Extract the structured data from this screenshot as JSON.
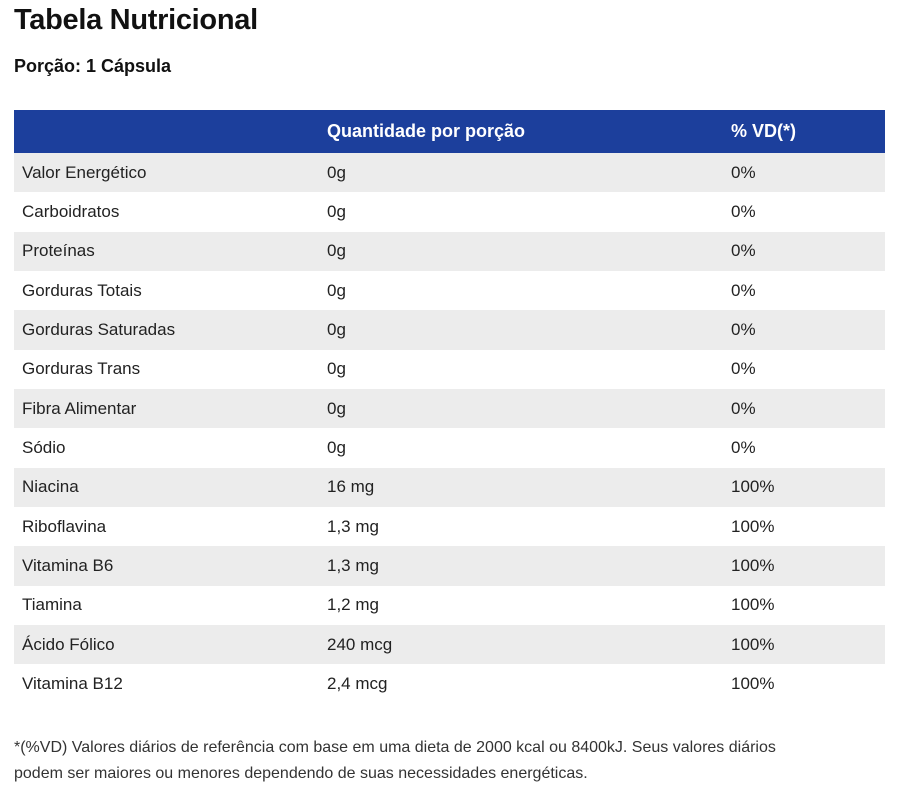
{
  "title": "Tabela Nutricional",
  "portion": "Porção: 1 Cápsula",
  "table": {
    "header": {
      "nutrient": "",
      "quantity": "Quantidade por porção",
      "vd": "% VD(*)"
    },
    "rows": [
      {
        "nutrient": "Valor Energético",
        "quantity": "0g",
        "vd": "0%"
      },
      {
        "nutrient": "Carboidratos",
        "quantity": "0g",
        "vd": "0%"
      },
      {
        "nutrient": "Proteínas",
        "quantity": "0g",
        "vd": "0%"
      },
      {
        "nutrient": "Gorduras Totais",
        "quantity": "0g",
        "vd": "0%"
      },
      {
        "nutrient": "Gorduras Saturadas",
        "quantity": "0g",
        "vd": "0%"
      },
      {
        "nutrient": "Gorduras Trans",
        "quantity": "0g",
        "vd": "0%"
      },
      {
        "nutrient": "Fibra Alimentar",
        "quantity": "0g",
        "vd": "0%"
      },
      {
        "nutrient": "Sódio",
        "quantity": "0g",
        "vd": "0%"
      },
      {
        "nutrient": "Niacina",
        "quantity": "16 mg",
        "vd": "100%"
      },
      {
        "nutrient": "Riboflavina",
        "quantity": "1,3 mg",
        "vd": "100%"
      },
      {
        "nutrient": "Vitamina B6",
        "quantity": "1,3 mg",
        "vd": "100%"
      },
      {
        "nutrient": "Tiamina",
        "quantity": "1,2 mg",
        "vd": "100%"
      },
      {
        "nutrient": "Ácido Fólico",
        "quantity": "240 mcg",
        "vd": "100%"
      },
      {
        "nutrient": "Vitamina B12",
        "quantity": "2,4 mcg",
        "vd": "100%"
      }
    ]
  },
  "footnote": {
    "line1": "*(%VD) Valores diários de referência com base em uma dieta de 2000 kcal ou 8400kJ. Seus valores diários",
    "line2": "podem ser maiores ou menores dependendo de suas necessidades energéticas."
  },
  "colors": {
    "header_bg": "#1c3f9c",
    "stripe_bg": "#ececec"
  }
}
